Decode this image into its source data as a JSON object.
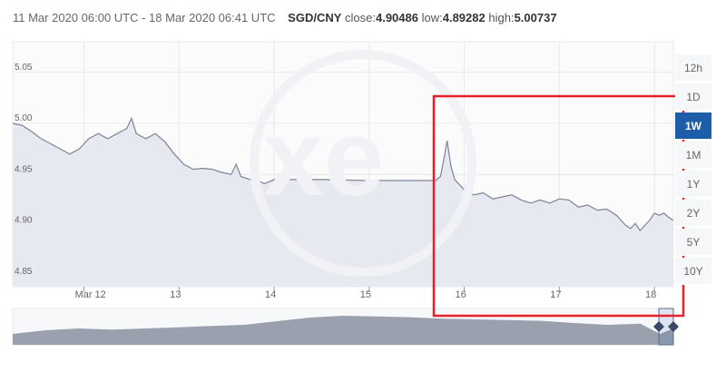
{
  "header": {
    "range": "11 Mar 2020 06:00 UTC - 18 Mar 2020 06:41 UTC",
    "pair": "SGD/CNY",
    "close_label": "close:",
    "close_value": "4.90486",
    "low_label": "low:",
    "low_value": "4.89282",
    "high_label": "high:",
    "high_value": "5.00737"
  },
  "timeframes": [
    {
      "label": "12h",
      "active": false
    },
    {
      "label": "1D",
      "active": false
    },
    {
      "label": "1W",
      "active": true
    },
    {
      "label": "1M",
      "active": false
    },
    {
      "label": "1Y",
      "active": false
    },
    {
      "label": "2Y",
      "active": false
    },
    {
      "label": "5Y",
      "active": false
    },
    {
      "label": "10Y",
      "active": false
    }
  ],
  "colors": {
    "line": "#7e8397",
    "fill": "#e7e9f0",
    "grid": "#e8e8e8",
    "highlight": "#e8202a",
    "navigator": "#9aa0ad",
    "accent": "#1e5ea8"
  },
  "chart_data": {
    "type": "area",
    "title": "",
    "xlabel": "",
    "ylabel": "",
    "ylim": [
      4.84,
      5.08
    ],
    "yticks": [
      4.85,
      4.9,
      4.95,
      5.0,
      5.05
    ],
    "ytick_labels": [
      "4.85",
      "4.90",
      "4.95",
      "5.00",
      "5.05"
    ],
    "xticks": [
      12,
      13,
      14,
      15,
      16,
      17,
      18
    ],
    "xtick_labels": [
      "Mar 12",
      "13",
      "14",
      "15",
      "16",
      "17",
      "18"
    ],
    "xlim": [
      11.25,
      18.2
    ],
    "series": [
      {
        "x": [
          11.25,
          11.35,
          11.45,
          11.55,
          11.65,
          11.75,
          11.85,
          11.95,
          12.05,
          12.15,
          12.25,
          12.35,
          12.45,
          12.5,
          12.55,
          12.65,
          12.75,
          12.85,
          12.95,
          13.05,
          13.15,
          13.25,
          13.35,
          13.45,
          13.55,
          13.6,
          13.65,
          13.75,
          13.85,
          13.9,
          14.0,
          14.5,
          15.0,
          15.5,
          15.7,
          15.75,
          15.78,
          15.82,
          15.86,
          15.9,
          16.0,
          16.1,
          16.2,
          16.3,
          16.4,
          16.5,
          16.6,
          16.7,
          16.8,
          16.9,
          17.0,
          17.1,
          17.2,
          17.3,
          17.4,
          17.5,
          17.6,
          17.7,
          17.75,
          17.8,
          17.85,
          17.9,
          17.95,
          18.0,
          18.05,
          18.1,
          18.15,
          18.2
        ],
        "y": [
          5.0,
          4.998,
          4.992,
          4.985,
          4.98,
          4.975,
          4.97,
          4.975,
          4.985,
          4.99,
          4.985,
          4.99,
          4.995,
          5.005,
          4.99,
          4.985,
          4.99,
          4.982,
          4.97,
          4.96,
          4.955,
          4.956,
          4.955,
          4.952,
          4.95,
          4.96,
          4.948,
          4.945,
          4.943,
          4.941,
          4.945,
          4.945,
          4.944,
          4.944,
          4.944,
          4.948,
          4.962,
          4.983,
          4.958,
          4.945,
          4.935,
          4.93,
          4.932,
          4.926,
          4.928,
          4.93,
          4.925,
          4.922,
          4.925,
          4.922,
          4.926,
          4.925,
          4.918,
          4.92,
          4.915,
          4.916,
          4.91,
          4.9,
          4.897,
          4.902,
          4.895,
          4.9,
          4.905,
          4.912,
          4.91,
          4.912,
          4.908,
          4.905
        ]
      }
    ],
    "navigator": {
      "x": [
        0,
        0.05,
        0.1,
        0.15,
        0.2,
        0.25,
        0.3,
        0.35,
        0.4,
        0.45,
        0.5,
        0.55,
        0.6,
        0.65,
        0.7,
        0.75,
        0.8,
        0.85,
        0.9,
        0.95,
        0.98,
        1.0
      ],
      "y": [
        0.3,
        0.4,
        0.45,
        0.42,
        0.45,
        0.48,
        0.52,
        0.55,
        0.65,
        0.75,
        0.8,
        0.78,
        0.76,
        0.72,
        0.7,
        0.68,
        0.66,
        0.6,
        0.55,
        0.58,
        0.3,
        0.45
      ]
    }
  }
}
